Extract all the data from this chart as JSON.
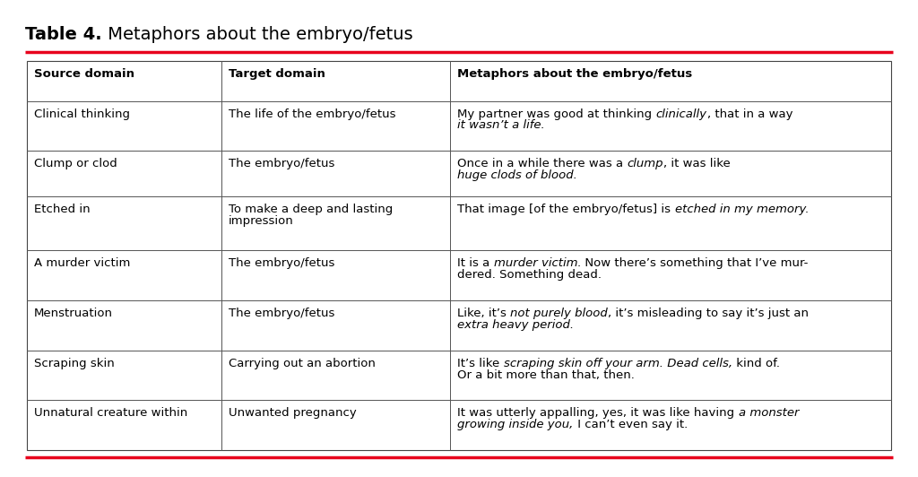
{
  "title_bold": "Table 4.",
  "title_normal": " Metaphors about the embryo/fetus",
  "red_line_color": "#e8001c",
  "background_color": "#ffffff",
  "header": [
    "Source domain",
    "Target domain",
    "Metaphors about the embryo/fetus"
  ],
  "rows": [
    [
      "Clinical thinking",
      "The life of the embryo/fetus",
      [
        [
          "My partner was good at thinking ",
          false
        ],
        [
          "clinically",
          true
        ],
        [
          ", that in a way\n",
          false
        ],
        [
          "it wasn’t a life.",
          true
        ]
      ]
    ],
    [
      "Clump or clod",
      "The embryo/fetus",
      [
        [
          "Once in a while there was a ",
          false
        ],
        [
          "clump",
          true
        ],
        [
          ", it was like\n",
          false
        ],
        [
          "huge clods of blood.",
          true
        ]
      ]
    ],
    [
      "Etched in",
      "To make a deep and lasting\nimpression",
      [
        [
          "That image [of the embryo/fetus] is ",
          false
        ],
        [
          "etched in my memory.",
          true
        ]
      ]
    ],
    [
      "A murder victim",
      "The embryo/fetus",
      [
        [
          "It is a ",
          false
        ],
        [
          "murder victim",
          true
        ],
        [
          ". Now there’s something that I’ve mur-\ndered. Something dead.",
          false
        ]
      ]
    ],
    [
      "Menstruation",
      "The embryo/fetus",
      [
        [
          "Like, it’s ",
          false
        ],
        [
          "not purely blood",
          true
        ],
        [
          ", it’s misleading to say it’s just an\n",
          false
        ],
        [
          "extra heavy period.",
          true
        ]
      ]
    ],
    [
      "Scraping skin",
      "Carrying out an abortion",
      [
        [
          "It’s like ",
          false
        ],
        [
          "scraping skin off your arm. Dead cells,",
          true
        ],
        [
          " kind of.\nOr a bit more than that, then.",
          false
        ]
      ]
    ],
    [
      "Unnatural creature within",
      "Unwanted pregnancy",
      [
        [
          "It was utterly appalling, yes, it was like having ",
          false
        ],
        [
          "a monster\ngrowing inside you,",
          true
        ],
        [
          " I can’t even say it.",
          false
        ]
      ]
    ]
  ],
  "figsize": [
    10.24,
    5.32
  ],
  "dpi": 100,
  "font_size": 9.5,
  "header_font_size": 9.5,
  "title_font_size": 14
}
